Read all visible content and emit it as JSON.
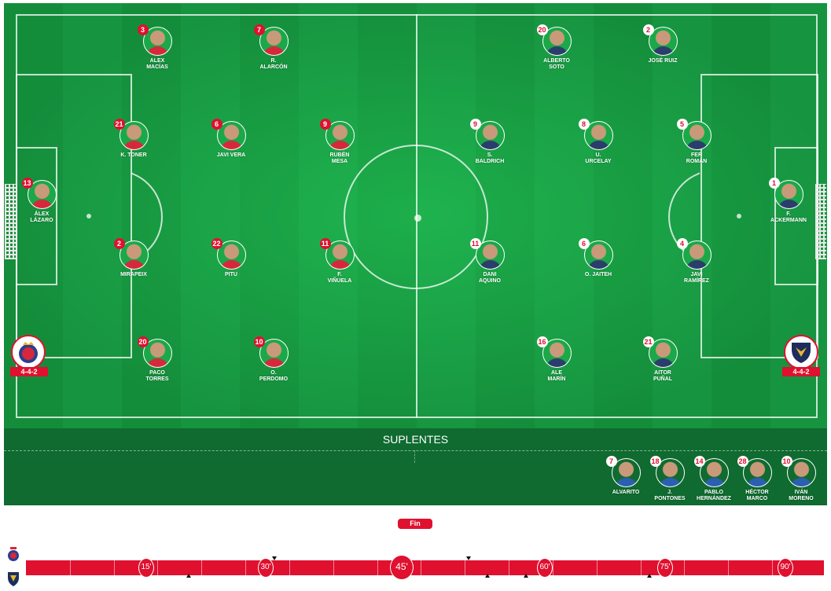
{
  "colors": {
    "accent": "#e0102f",
    "pitch": "#1aa849",
    "bench": "#0f6b30"
  },
  "home": {
    "formation": "4-4-2",
    "crest": "home-crest",
    "players": [
      {
        "n": "3",
        "name": "ALEX\nMACÍAS"
      },
      {
        "n": "7",
        "name": "R.\nALARCÓN"
      },
      {
        "n": "21",
        "name": "K. TONER"
      },
      {
        "n": "6",
        "name": "JAVI VERA"
      },
      {
        "n": "9",
        "name": "RUBÉN\nMESA"
      },
      {
        "n": "13",
        "name": "ÁLEX\nLÁZARO"
      },
      {
        "n": "2",
        "name": "MIRAPEIX"
      },
      {
        "n": "22",
        "name": "PITU"
      },
      {
        "n": "11",
        "name": "F.\nVIÑUELA"
      },
      {
        "n": "20",
        "name": "PACO\nTORRES"
      },
      {
        "n": "10",
        "name": "O.\nPERDOMO"
      }
    ]
  },
  "away": {
    "formation": "4-4-2",
    "crest": "away-crest",
    "players": [
      {
        "n": "20",
        "name": "ALBERTO\nSOTO"
      },
      {
        "n": "2",
        "name": "JOSÉ RUIZ"
      },
      {
        "n": "9",
        "name": "S.\nBALDRICH"
      },
      {
        "n": "8",
        "name": "U.\nURCELAY"
      },
      {
        "n": "5",
        "name": "FER\nROMÁN"
      },
      {
        "n": "1",
        "name": "F.\nACKERMANN"
      },
      {
        "n": "11",
        "name": "DANI\nAQUINO"
      },
      {
        "n": "6",
        "name": "O. JAITEH"
      },
      {
        "n": "4",
        "name": "JAVI\nRAMÍREZ"
      },
      {
        "n": "16",
        "name": "ALE\nMARÍN"
      },
      {
        "n": "21",
        "name": "AITOR\nPUÑAL"
      }
    ]
  },
  "subs": {
    "title": "SUPLENTES",
    "players": [
      {
        "n": "7",
        "name": "ALVARITO"
      },
      {
        "n": "18",
        "name": "J.\nPONTONES"
      },
      {
        "n": "14",
        "name": "PABLO\nHERNÁNDEZ"
      },
      {
        "n": "28",
        "name": "HÉCTOR\nMARCO"
      },
      {
        "n": "10",
        "name": "IVÁN\nMORENO"
      }
    ]
  },
  "timeline": {
    "status": "Fin",
    "markers": [
      "15'",
      "30'",
      "45'",
      "60'",
      "75'",
      "90'"
    ],
    "home_events_min": [
      30,
      52
    ],
    "away_events_min": [
      20,
      54,
      58,
      71
    ]
  }
}
